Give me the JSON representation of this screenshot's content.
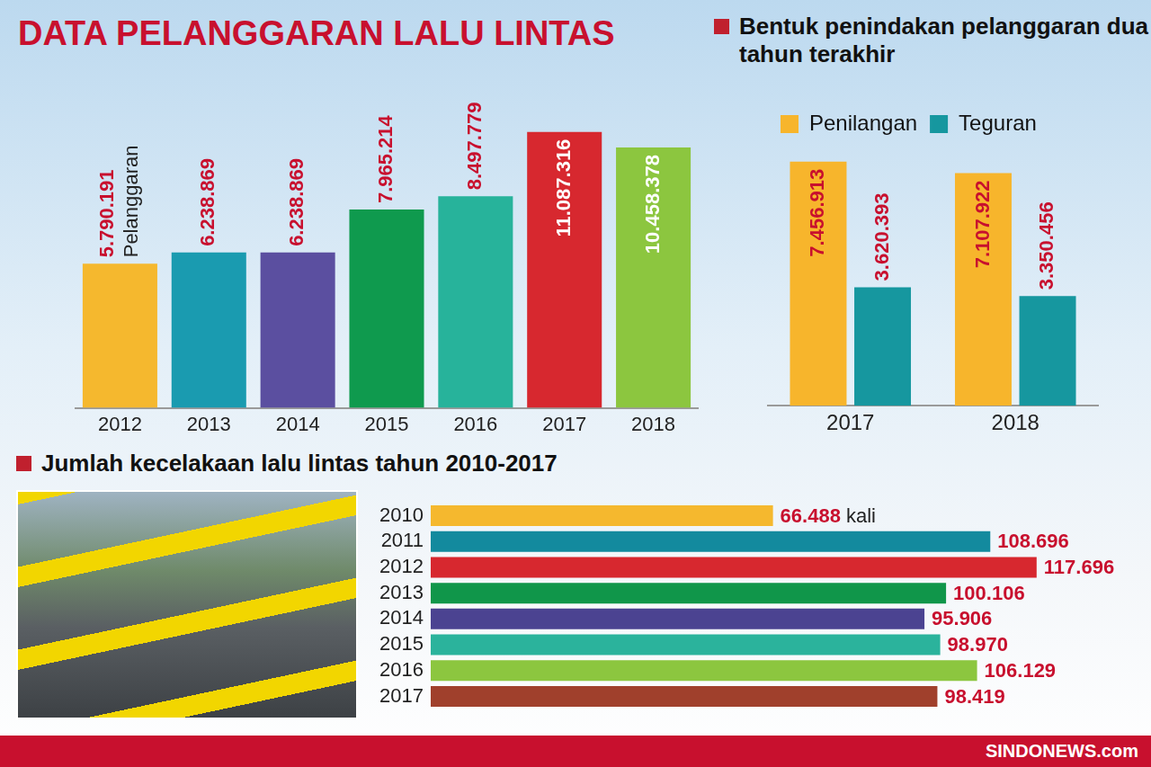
{
  "title": "DATA PELANGGARAN LALU LINTAS",
  "source": "SINDONEWS.com",
  "chart_data": [
    {
      "type": "bar",
      "categories": [
        "2012",
        "2013",
        "2014",
        "2015",
        "2016",
        "2017",
        "2018"
      ],
      "values": [
        5790191,
        6238869,
        6238869,
        7965214,
        8497779,
        11087316,
        10458378
      ],
      "value_labels": [
        "5.790.191",
        "6.238.869",
        "6.238.869",
        "7.965.214",
        "8.497.779",
        "11.087.316",
        "10.458.378"
      ],
      "annotation": "Pelanggaran",
      "colors": [
        "#f5b82e",
        "#1a9bb0",
        "#5b4fa0",
        "#0f9a4e",
        "#27b39b",
        "#d7282f",
        "#8cc63f"
      ],
      "ylim": [
        0,
        14000000
      ],
      "tick_labels": "x",
      "grid": false,
      "data_labels": true
    },
    {
      "type": "bar",
      "title": "Bentuk penindakan pelanggaran dua tahun terakhir",
      "categories": [
        "2017",
        "2018"
      ],
      "series": [
        {
          "name": "Penilangan",
          "color": "#f7b52c",
          "values": [
            7456913,
            7107922
          ],
          "value_labels": [
            "7.456.913",
            "7.107.922"
          ]
        },
        {
          "name": "Teguran",
          "color": "#16979f",
          "values": [
            3620393,
            3350456
          ],
          "value_labels": [
            "3.620.393",
            "3.350.456"
          ]
        }
      ],
      "ylim": [
        0,
        8000000
      ],
      "legend": "top",
      "tick_labels": "x",
      "grid": false,
      "data_labels": true
    },
    {
      "type": "bar",
      "orientation": "horizontal",
      "title": "Jumlah kecelakaan lalu lintas tahun 2010-2017",
      "categories": [
        "2010",
        "2011",
        "2012",
        "2013",
        "2014",
        "2015",
        "2016",
        "2017"
      ],
      "values": [
        66488,
        108696,
        117696,
        100106,
        95906,
        98970,
        106129,
        98419
      ],
      "value_labels": [
        "66.488",
        "108.696",
        "117.696",
        "100.106",
        "95.906",
        "98.970",
        "106.129",
        "98.419"
      ],
      "annotation": "kali",
      "colors": [
        "#f5b82e",
        "#138a9e",
        "#d7282f",
        "#10964a",
        "#4b4391",
        "#2bb39c",
        "#8cc63f",
        "#a0402c"
      ],
      "xlim": [
        0,
        120000
      ],
      "tick_labels": "y",
      "grid": false,
      "data_labels": true
    }
  ]
}
